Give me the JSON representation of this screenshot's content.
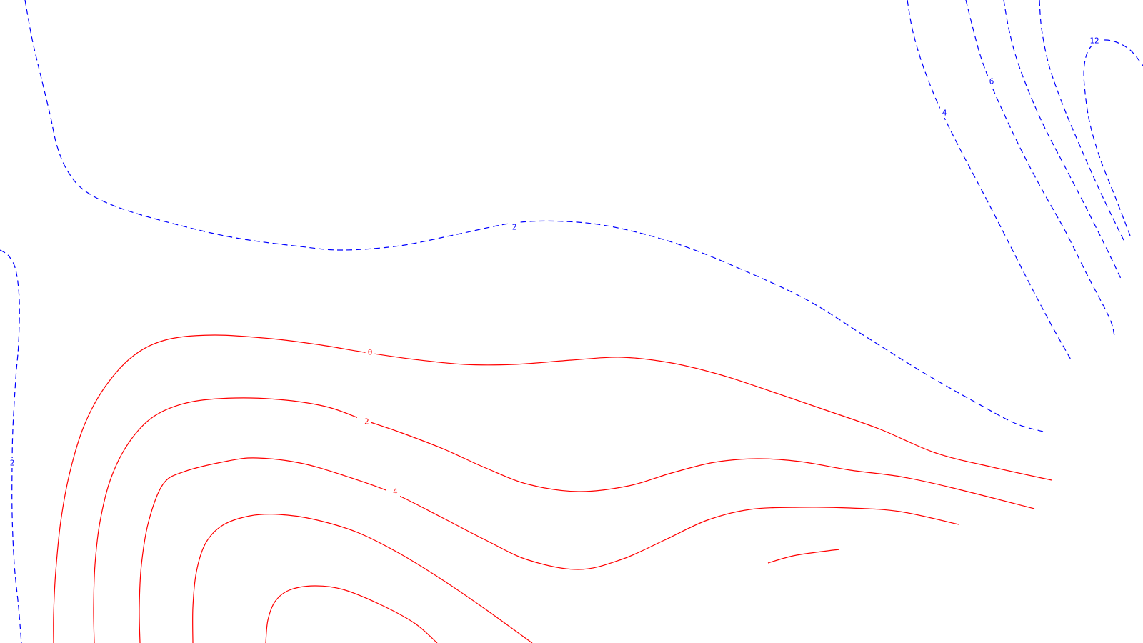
{
  "colors": {
    "positive": "#0000ff",
    "negative": "#ff0000",
    "background": "#ffffff"
  },
  "contours": [
    {
      "id": "p2-main",
      "level": 2,
      "style": "dashed",
      "label": "2"
    },
    {
      "id": "p2-left",
      "level": 2,
      "style": "dashed",
      "label": "2"
    },
    {
      "id": "p4",
      "level": 4,
      "style": "dashed",
      "label": "4"
    },
    {
      "id": "p6",
      "level": 6,
      "style": "dashed",
      "label": "6"
    },
    {
      "id": "p8",
      "level": 8,
      "style": "dashed",
      "label": ""
    },
    {
      "id": "p10",
      "level": 10,
      "style": "dashed",
      "label": ""
    },
    {
      "id": "p12",
      "level": 12,
      "style": "dashed",
      "label": "12"
    },
    {
      "id": "n0",
      "level": 0,
      "style": "solid",
      "label": "0"
    },
    {
      "id": "n2",
      "level": -2,
      "style": "solid",
      "label": "-2"
    },
    {
      "id": "n4",
      "level": -4,
      "style": "solid",
      "label": "-4"
    },
    {
      "id": "n6",
      "level": -6,
      "style": "solid",
      "label": ""
    },
    {
      "id": "n8",
      "level": -8,
      "style": "solid",
      "label": ""
    },
    {
      "id": "n6-fragment",
      "level": -6,
      "style": "solid",
      "label": ""
    }
  ]
}
